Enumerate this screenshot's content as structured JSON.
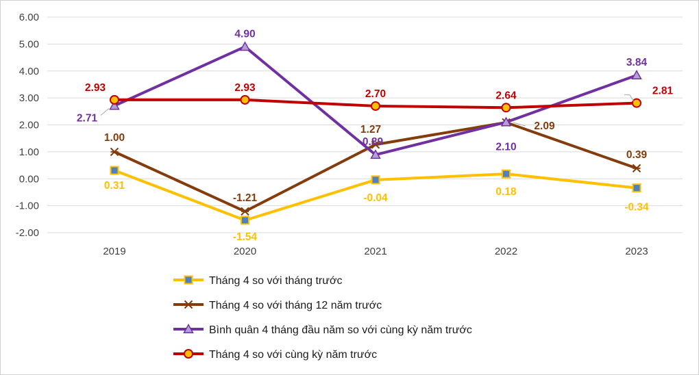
{
  "chart_data": {
    "type": "line",
    "title": "",
    "xlabel": "",
    "ylabel": "",
    "categories": [
      "2019",
      "2020",
      "2021",
      "2022",
      "2023"
    ],
    "ylim": [
      -2,
      6
    ],
    "yticks": [
      "6.00",
      "5.00",
      "4.00",
      "3.00",
      "2.00",
      "1.00",
      "0.00",
      "-1.00",
      "-2.00"
    ],
    "grid": true,
    "legend_position": "bottom",
    "series": [
      {
        "name": "Tháng 4 so với tháng trước",
        "values": [
          0.31,
          -1.54,
          -0.04,
          0.18,
          -0.34
        ],
        "labels": [
          "0.31",
          "-1.54",
          "-0.04",
          "0.18",
          "-0.34"
        ],
        "color": "#FFC000",
        "marker": "square"
      },
      {
        "name": "Tháng 4 so với tháng 12 năm trước",
        "values": [
          1.0,
          -1.21,
          1.27,
          2.09,
          0.39
        ],
        "labels": [
          "1.00",
          "-1.21",
          "1.27",
          "2.09",
          "0.39"
        ],
        "color": "#843C0C",
        "marker": "star"
      },
      {
        "name": "Bình quân 4 tháng đầu năm so với cùng kỳ năm trước",
        "values": [
          2.71,
          4.9,
          0.89,
          2.1,
          3.84
        ],
        "labels": [
          "2.71",
          "4.90",
          "0.89",
          "2.10",
          "3.84"
        ],
        "color": "#7030A0",
        "marker": "triangle"
      },
      {
        "name": "Tháng 4 so với cùng kỳ năm trước",
        "values": [
          2.93,
          2.93,
          2.7,
          2.64,
          2.81
        ],
        "labels": [
          "2.93",
          "2.93",
          "2.70",
          "2.64",
          "2.81"
        ],
        "color": "#C00000",
        "marker": "circle"
      }
    ]
  }
}
